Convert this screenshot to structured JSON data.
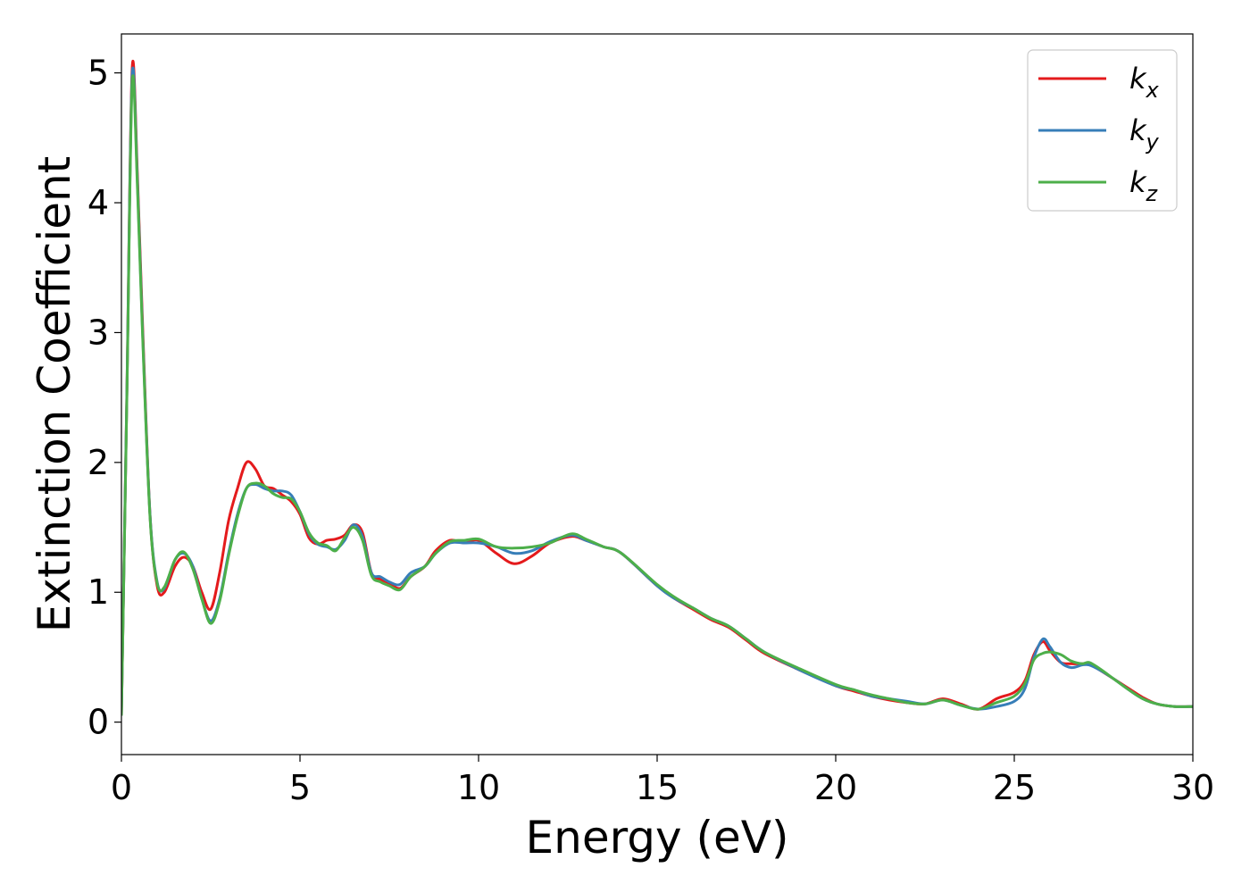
{
  "chart_data": {
    "type": "line",
    "xlabel": "Energy (eV)",
    "ylabel": "Extinction Coefficient",
    "xlim": [
      0,
      30
    ],
    "ylim": [
      -0.25,
      5.3
    ],
    "xticks": [
      "0",
      "5",
      "10",
      "15",
      "20",
      "25",
      "30"
    ],
    "yticks": [
      "0",
      "1",
      "2",
      "3",
      "4",
      "5"
    ],
    "grid": false,
    "legend_position": "top-right",
    "x": [
      0,
      0.15,
      0.3,
      0.45,
      0.6,
      0.8,
      1.0,
      1.2,
      1.5,
      1.75,
      2.0,
      2.25,
      2.5,
      2.75,
      3.0,
      3.25,
      3.5,
      3.75,
      4.0,
      4.25,
      4.5,
      4.75,
      5.0,
      5.25,
      5.5,
      5.75,
      6.0,
      6.25,
      6.5,
      6.75,
      7.0,
      7.25,
      7.5,
      7.8,
      8.1,
      8.5,
      8.8,
      9.2,
      9.6,
      10.0,
      10.5,
      11.0,
      11.5,
      12.0,
      12.6,
      13.0,
      13.5,
      14.0,
      15.0,
      15.5,
      16.0,
      16.5,
      17.0,
      17.5,
      18.0,
      19.0,
      20.0,
      20.5,
      21.0,
      21.5,
      22.0,
      22.5,
      23.0,
      23.5,
      24.0,
      24.5,
      25.0,
      25.3,
      25.55,
      25.8,
      26.0,
      26.3,
      26.6,
      26.9,
      27.1,
      27.4,
      27.8,
      28.2,
      28.6,
      29.0,
      29.5,
      30.0
    ],
    "series": [
      {
        "name": "k_x",
        "color": "#e41a1c",
        "values": [
          0.05,
          2.5,
          5.03,
          4.2,
          3.0,
          1.6,
          1.05,
          1.0,
          1.2,
          1.27,
          1.2,
          1.0,
          0.87,
          1.15,
          1.55,
          1.8,
          2.0,
          1.95,
          1.82,
          1.8,
          1.75,
          1.7,
          1.6,
          1.42,
          1.37,
          1.4,
          1.41,
          1.44,
          1.52,
          1.46,
          1.15,
          1.1,
          1.07,
          1.03,
          1.12,
          1.2,
          1.32,
          1.4,
          1.38,
          1.4,
          1.3,
          1.22,
          1.28,
          1.38,
          1.43,
          1.4,
          1.35,
          1.3,
          1.05,
          0.95,
          0.87,
          0.79,
          0.73,
          0.63,
          0.53,
          0.4,
          0.28,
          0.24,
          0.2,
          0.17,
          0.15,
          0.14,
          0.18,
          0.14,
          0.1,
          0.18,
          0.23,
          0.32,
          0.52,
          0.62,
          0.55,
          0.46,
          0.45,
          0.45,
          0.45,
          0.4,
          0.33,
          0.26,
          0.19,
          0.14,
          0.12,
          0.12
        ]
      },
      {
        "name": "k_y",
        "color": "#377eb8",
        "values": [
          0.05,
          2.5,
          4.98,
          4.15,
          2.95,
          1.6,
          1.08,
          1.03,
          1.25,
          1.3,
          1.2,
          0.95,
          0.78,
          0.95,
          1.3,
          1.6,
          1.8,
          1.83,
          1.8,
          1.78,
          1.78,
          1.75,
          1.62,
          1.45,
          1.37,
          1.35,
          1.33,
          1.4,
          1.52,
          1.43,
          1.15,
          1.12,
          1.08,
          1.06,
          1.15,
          1.2,
          1.3,
          1.38,
          1.38,
          1.38,
          1.35,
          1.3,
          1.32,
          1.39,
          1.44,
          1.4,
          1.35,
          1.3,
          1.05,
          0.95,
          0.88,
          0.8,
          0.74,
          0.64,
          0.54,
          0.4,
          0.28,
          0.25,
          0.2,
          0.18,
          0.16,
          0.14,
          0.17,
          0.13,
          0.1,
          0.12,
          0.16,
          0.26,
          0.5,
          0.64,
          0.58,
          0.46,
          0.42,
          0.44,
          0.44,
          0.4,
          0.33,
          0.25,
          0.18,
          0.14,
          0.12,
          0.12
        ]
      },
      {
        "name": "k_z",
        "color": "#4daf4a",
        "values": [
          0.05,
          2.45,
          4.92,
          4.1,
          2.92,
          1.58,
          1.07,
          1.04,
          1.25,
          1.31,
          1.18,
          0.95,
          0.76,
          0.93,
          1.28,
          1.58,
          1.8,
          1.84,
          1.82,
          1.76,
          1.73,
          1.72,
          1.62,
          1.46,
          1.38,
          1.36,
          1.32,
          1.42,
          1.5,
          1.4,
          1.13,
          1.08,
          1.05,
          1.02,
          1.12,
          1.2,
          1.3,
          1.39,
          1.4,
          1.41,
          1.35,
          1.34,
          1.35,
          1.38,
          1.45,
          1.41,
          1.35,
          1.3,
          1.06,
          0.96,
          0.88,
          0.8,
          0.74,
          0.64,
          0.54,
          0.41,
          0.29,
          0.25,
          0.21,
          0.18,
          0.15,
          0.14,
          0.17,
          0.13,
          0.1,
          0.15,
          0.2,
          0.3,
          0.48,
          0.53,
          0.54,
          0.52,
          0.47,
          0.45,
          0.46,
          0.41,
          0.33,
          0.25,
          0.18,
          0.14,
          0.12,
          0.12
        ]
      }
    ],
    "legend": {
      "entries": [
        {
          "base": "k",
          "sub": "x",
          "color": "#e41a1c"
        },
        {
          "base": "k",
          "sub": "y",
          "color": "#377eb8"
        },
        {
          "base": "k",
          "sub": "z",
          "color": "#4daf4a"
        }
      ]
    }
  }
}
